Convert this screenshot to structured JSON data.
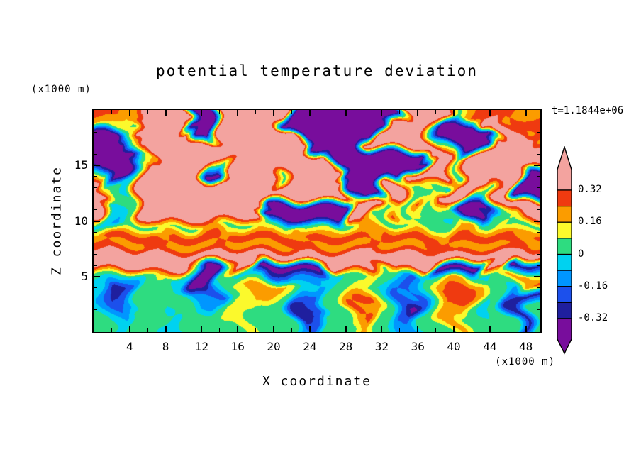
{
  "title": "potential temperature deviation",
  "time_label": "t=1.1844e+06",
  "axes": {
    "x": {
      "label": "X coordinate",
      "unit": "(x1000 m)",
      "min": 0,
      "max": 49.6,
      "major_ticks": [
        4,
        8,
        12,
        16,
        20,
        24,
        28,
        32,
        36,
        40,
        44,
        48
      ],
      "minor_step": 2
    },
    "z": {
      "label": "Z coordinate",
      "unit": "(x1000 m)",
      "min": 0,
      "max": 20,
      "major_ticks": [
        5,
        10,
        15
      ],
      "minor_step": 1
    }
  },
  "colorbar": {
    "labels": [
      "0.32",
      "0.16",
      "0",
      "-0.16",
      "-0.32"
    ],
    "boundaries": [
      -0.32,
      -0.24,
      -0.16,
      -0.08,
      0,
      0.08,
      0.16,
      0.24,
      0.32
    ],
    "colors_low_to_high": [
      "#780D9C",
      "#1F1F9E",
      "#1C50EC",
      "#0096FF",
      "#00D2F0",
      "#2EDC80",
      "#FBF92C",
      "#FB9C00",
      "#EF3A10",
      "#F3A39F"
    ]
  },
  "chart_data": {
    "type": "heatmap",
    "title": "potential temperature deviation",
    "xlabel": "X coordinate (x1000 m)",
    "ylabel": "Z coordinate (x1000 m)",
    "time": "t=1.1844e+06",
    "x_range": [
      0,
      49.6
    ],
    "z_range": [
      0,
      20
    ],
    "levels": [
      -0.32,
      -0.24,
      -0.16,
      -0.08,
      0,
      0.08,
      0.16,
      0.24,
      0.32
    ],
    "colors_low_to_high": [
      "#780D9C",
      "#1F1F9E",
      "#1C50EC",
      "#0096FF",
      "#00D2F0",
      "#2EDC80",
      "#FBF92C",
      "#FB9C00",
      "#EF3A10",
      "#F3A39F"
    ],
    "value_palette": {
      "U": -0.4,
      "N": -0.28,
      "L": -0.2,
      "B": -0.12,
      "C": -0.04,
      "G": 0.04,
      "Y": 0.12,
      "O": 0.2,
      "R": 0.28,
      "P": 0.4
    },
    "grid_rows_top_to_bottom": [
      "RRROOPPPPUUPPPPPPPUUUUUUUUUUPPPPGORRRROO",
      "OOYGPPPPUUUPPPPPPUUUUUUUUUPPPPGUUUUPPORR",
      "UUGPPPPPPUUPPPPPPPUUUUUUUPPPPPCUUUUUPPOR",
      "UUUGPPPPPPPPPPPPPPPUUUUUPPPPPPGGUUUPPPPO",
      "UUUUGPPPPPPPPPPPPPPPPUUUUUUUUPPPGPPPPPPP",
      "UUUGPPPPPPCCPPPPPPPPPUUUUUUUUUPPGPPPPPPP",
      "GUUGPPPPPPUUPPPPGPPPPPUUUUUUPPPPCPPPPPUU",
      "PGGCPPPPPPPPPPPPGPPPPPPUUUPPGYGCPPPGRPUU",
      "PPGCPPPPPPPPPPPPPPPPPPPGUUPPGGYPPPGGPPUU",
      "PCGGPPPPPPPPPPPPUUUUUUUPPPGYGRGYGUUUGPPP",
      "PCCGPPPPPPPPPPPUUUUUUUUPPGGRGYGCGUUGGYPP",
      "CCBGGGYGGOOGGGYGGGOGGYGGOOGGYGGGOOGGYGGG",
      "ORRRRORRRRRORRRRRRORRRRRORRRRRRORRRRRROR",
      "ROOORROOOOOROOOOORROOOOOROOOOORROOOOOROO",
      "PPPPPPPPPPPPPPPPPPPPPPPPPPPPPPPPPPPPPPPP",
      "PPPPPPPPGUUGPPUUUUUUUPPPPGPPPPUUUUUPPUNN",
      "GGCCGYGCCUUGGCCCLLBBCCGGYGGBLBGGOOGCGOOG",
      "CNNLGGGGCUUBGYOOOYCCBGGYYGCBLBGORROGGBOR",
      "CLNLGGGGGBBLGYOOYGBLLGGORRGLBLGRRROGGLNN",
      "CBLBGGCGGBBGYYYGGGNNLGGROOGLULGOOOGCGNNG",
      "GCBGGGGCGGGGYYGGGGNLGGGORGGLLGGOOGGCGGNG",
      "GGCGGGCCGGGGGYGGGGBLGGGGOGGBBGGGOGGGGGNG"
    ]
  }
}
